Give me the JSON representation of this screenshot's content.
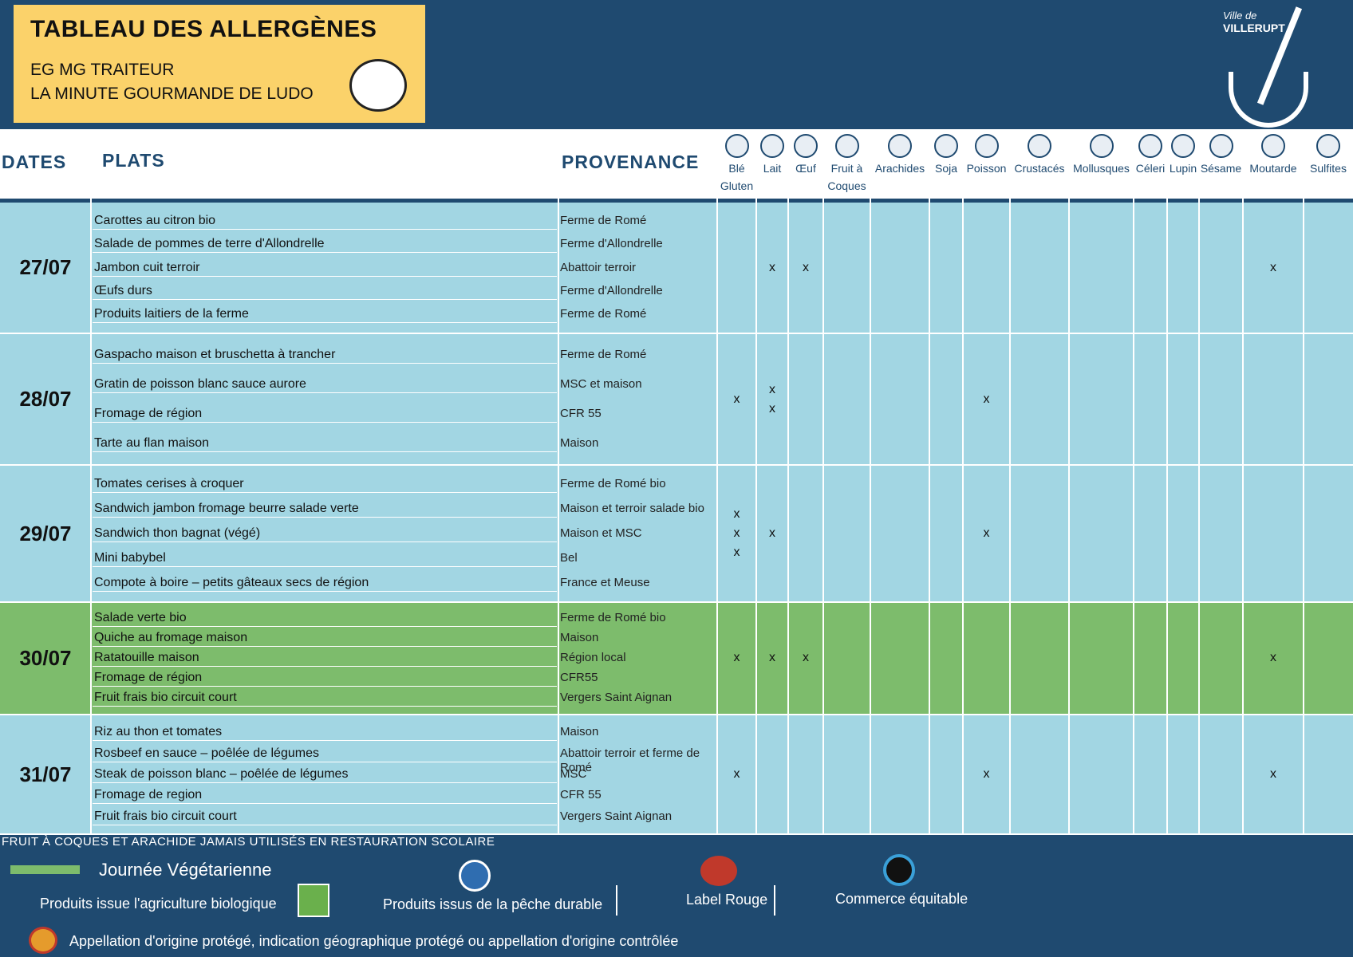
{
  "header": {
    "title": "TABLEAU DES ALLERGÈNES",
    "subtitle_lines": [
      "EG MG TRAITEUR",
      "LA MINUTE GOURMANDE DE LUDO"
    ]
  },
  "logo": {
    "line1": "Ville de",
    "line2": "VILLERUPT"
  },
  "table": {
    "columns": {
      "dates": "DATES",
      "dishes": "PLATS",
      "provenance": "PROVENANCE"
    },
    "allergens": [
      "Blé\nGluten",
      "Lait",
      "Œuf",
      "Fruit à\nCoques",
      "Arachides",
      "Soja",
      "Poisson",
      "Crustacés",
      "Mollusques",
      "Céleri",
      "Lupin",
      "Sésame",
      "Moutarde",
      "Sulfites"
    ],
    "days": [
      {
        "date": "27/07",
        "vegetarian": false,
        "dishes": [
          "Carottes au citron bio",
          "Salade de pommes de terre d'Allondrelle",
          "Jambon cuit terroir",
          "Œufs durs",
          "Produits laitiers de la ferme"
        ],
        "provenance": [
          "Ferme de Romé",
          "Ferme d'Allondrelle",
          "Abattoir terroir",
          "Ferme d'Allondrelle",
          "Ferme de Romé"
        ],
        "marks": [
          [],
          [
            "x"
          ],
          [
            "x"
          ],
          [],
          [],
          [],
          [],
          [],
          [],
          [],
          [],
          [],
          [
            "x"
          ],
          []
        ]
      },
      {
        "date": "28/07",
        "vegetarian": false,
        "dishes": [
          "Gaspacho maison et bruschetta à trancher",
          "Gratin de poisson blanc sauce aurore",
          "Fromage de région",
          "Tarte au flan maison"
        ],
        "provenance": [
          "Ferme de Romé",
          "MSC et maison",
          "CFR 55",
          "Maison"
        ],
        "marks": [
          [
            "x"
          ],
          [
            "x",
            "x"
          ],
          [],
          [],
          [],
          [],
          [
            "x"
          ],
          [],
          [],
          [],
          [],
          [],
          [],
          []
        ]
      },
      {
        "date": "29/07",
        "vegetarian": false,
        "dishes": [
          "Tomates cerises à croquer",
          "Sandwich jambon fromage beurre salade verte",
          "Sandwich thon bagnat (végé)",
          "Mini babybel",
          "Compote à boire – petits gâteaux secs de région"
        ],
        "provenance": [
          "Ferme de Romé bio",
          "Maison et terroir salade bio",
          "Maison et MSC",
          "Bel",
          "France et Meuse"
        ],
        "marks": [
          [
            "x",
            "x",
            "x"
          ],
          [
            "x"
          ],
          [],
          [],
          [],
          [],
          [
            "x"
          ],
          [],
          [],
          [],
          [],
          [],
          [],
          []
        ]
      },
      {
        "date": "30/07",
        "vegetarian": true,
        "dishes": [
          "Salade verte bio",
          "Quiche au fromage maison",
          "Ratatouille maison",
          "Fromage de région",
          "Fruit frais bio circuit court"
        ],
        "provenance": [
          "Ferme de Romé bio",
          "Maison",
          "Région local",
          "CFR55",
          "Vergers Saint Aignan"
        ],
        "marks": [
          [
            "x"
          ],
          [
            "x"
          ],
          [
            "x"
          ],
          [],
          [],
          [],
          [],
          [],
          [],
          [],
          [],
          [],
          [
            "x"
          ],
          []
        ]
      },
      {
        "date": "31/07",
        "vegetarian": false,
        "dishes": [
          "Riz au thon et tomates",
          "Rosbeef en sauce – poêlée de légumes",
          "Steak de poisson blanc – poêlée de légumes",
          "Fromage de region",
          "Fruit frais bio circuit court"
        ],
        "provenance": [
          "Maison",
          "Abattoir terroir et ferme de Romé",
          "MSC",
          "CFR 55",
          "Vergers Saint Aignan"
        ],
        "marks": [
          [
            "x"
          ],
          [],
          [],
          [],
          [],
          [],
          [
            "x"
          ],
          [],
          [],
          [],
          [],
          [],
          [
            "x"
          ],
          []
        ]
      }
    ]
  },
  "footer": {
    "note": "FRUIT À COQUES ET ARACHIDE JAMAIS UTILISÉS EN RESTAURATION SCOLAIRE",
    "vegetarian_day": "Journée Végétarienne",
    "organic": "Produits issue l'agriculture biologique",
    "sustainable_fishing": "Produits issus de la pêche durable",
    "label_rouge": "Label Rouge",
    "fair_trade": "Commerce équitable",
    "aop": "Appellation d'origine protégé, indication géographique protégé ou appellation d'origine contrôlée"
  }
}
